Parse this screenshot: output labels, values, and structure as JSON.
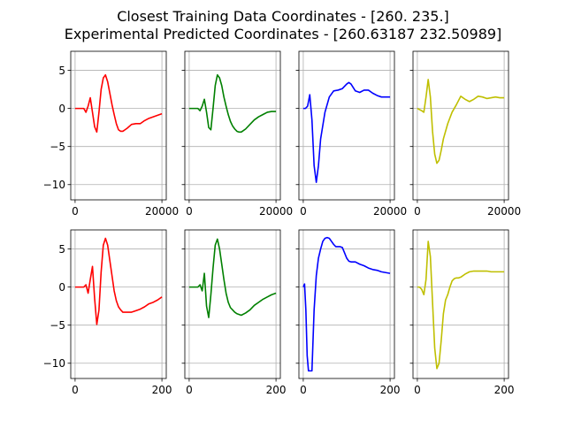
{
  "title_lines": [
    "Closest Training Data Coordinates - [260. 235.]",
    "Experimental Predicted Coordinates - [260.63187 232.50989]"
  ],
  "chart_data": [
    {
      "type": "line",
      "row": 0,
      "col": 0,
      "color": "#ff0000",
      "xlim": [
        -1000,
        21000
      ],
      "ylim": [
        -12,
        7.5
      ],
      "xticks": [
        0,
        20000
      ],
      "xtick_labels": [
        "0",
        "20000"
      ],
      "yticks": [
        5,
        0,
        -5,
        -10
      ],
      "ytick_labels": [
        "5",
        "0",
        "−5",
        "−10"
      ],
      "grid": true,
      "x": [
        0,
        1000,
        2000,
        2500,
        3000,
        3500,
        4000,
        4500,
        5000,
        5500,
        6000,
        6500,
        7000,
        7500,
        8000,
        8500,
        9000,
        9500,
        10000,
        10500,
        11000,
        11500,
        12000,
        13000,
        14000,
        15000,
        16000,
        17000,
        18000,
        19000,
        20000
      ],
      "y": [
        0,
        0,
        0,
        -0.5,
        0.3,
        1.4,
        -0.5,
        -2.4,
        -3.1,
        -0.5,
        2.5,
        4,
        4.4,
        3.5,
        2,
        0.5,
        -0.8,
        -2,
        -2.8,
        -3,
        -3,
        -2.8,
        -2.6,
        -2.1,
        -2,
        -2,
        -1.6,
        -1.3,
        -1.1,
        -0.9,
        -0.7
      ]
    },
    {
      "type": "line",
      "row": 0,
      "col": 1,
      "color": "#008000",
      "xlim": [
        -1000,
        21000
      ],
      "ylim": [
        -12,
        7.5
      ],
      "xticks": [
        0,
        20000
      ],
      "xtick_labels": [
        "0",
        "20000"
      ],
      "yticks": [
        5,
        0,
        -5,
        -10
      ],
      "ytick_labels": [],
      "grid": true,
      "x": [
        0,
        1000,
        2000,
        2500,
        3000,
        3500,
        4000,
        4500,
        5000,
        5500,
        6000,
        6500,
        7000,
        7500,
        8000,
        8500,
        9000,
        9500,
        10000,
        10500,
        11000,
        11500,
        12000,
        13000,
        14000,
        15000,
        16000,
        17000,
        18000,
        19000,
        20000
      ],
      "y": [
        0,
        0,
        0,
        -0.3,
        0.3,
        1.2,
        -0.5,
        -2.5,
        -2.8,
        0,
        3,
        4.4,
        4,
        3,
        1.5,
        0.3,
        -0.8,
        -1.7,
        -2.3,
        -2.7,
        -3,
        -3.1,
        -3.1,
        -2.7,
        -2.1,
        -1.5,
        -1.1,
        -0.8,
        -0.5,
        -0.4,
        -0.4
      ]
    },
    {
      "type": "line",
      "row": 0,
      "col": 2,
      "color": "#0000ff",
      "xlim": [
        -1000,
        21000
      ],
      "ylim": [
        -12,
        7.5
      ],
      "xticks": [
        0,
        20000
      ],
      "xtick_labels": [
        "0",
        "20000"
      ],
      "yticks": [
        5,
        0,
        -5,
        -10
      ],
      "ytick_labels": [],
      "grid": true,
      "x": [
        0,
        500,
        1000,
        1500,
        2000,
        2500,
        3000,
        3500,
        4000,
        5000,
        6000,
        7000,
        8000,
        9000,
        10000,
        10500,
        11000,
        12000,
        13000,
        14000,
        15000,
        16000,
        17000,
        18000,
        19000,
        20000
      ],
      "y": [
        0,
        0,
        0.3,
        1.8,
        -1.5,
        -7.5,
        -9.7,
        -7.5,
        -4,
        -0.5,
        1.5,
        2.3,
        2.4,
        2.6,
        3.2,
        3.4,
        3.2,
        2.3,
        2.1,
        2.4,
        2.4,
        2,
        1.7,
        1.5,
        1.5,
        1.5
      ]
    },
    {
      "type": "line",
      "row": 0,
      "col": 3,
      "color": "#bfbf00",
      "xlim": [
        -1000,
        21000
      ],
      "ylim": [
        -12,
        7.5
      ],
      "xticks": [
        0,
        20000
      ],
      "xtick_labels": [
        "0",
        "20000"
      ],
      "yticks": [
        5,
        0,
        -5,
        -10
      ],
      "ytick_labels": [],
      "grid": true,
      "x": [
        0,
        1000,
        1500,
        2000,
        2500,
        3000,
        3500,
        4000,
        4500,
        5000,
        5500,
        6000,
        7000,
        8000,
        9000,
        10000,
        11000,
        12000,
        13000,
        14000,
        15000,
        16000,
        17000,
        18000,
        19000,
        20000
      ],
      "y": [
        0,
        -0.3,
        -0.5,
        1.5,
        3.8,
        1.5,
        -3,
        -6,
        -7.2,
        -6.8,
        -5.5,
        -4,
        -2,
        -0.5,
        0.5,
        1.6,
        1.2,
        0.9,
        1.2,
        1.6,
        1.5,
        1.3,
        1.4,
        1.5,
        1.4,
        1.4
      ]
    },
    {
      "type": "line",
      "row": 1,
      "col": 0,
      "color": "#ff0000",
      "xlim": [
        -10,
        210
      ],
      "ylim": [
        -12,
        7.5
      ],
      "xticks": [
        0,
        200
      ],
      "xtick_labels": [
        "0",
        "200"
      ],
      "yticks": [
        5,
        0,
        -5,
        -10
      ],
      "ytick_labels": [
        "5",
        "0",
        "−5",
        "−10"
      ],
      "grid": true,
      "x": [
        0,
        10,
        20,
        25,
        30,
        35,
        40,
        45,
        50,
        55,
        60,
        65,
        70,
        75,
        80,
        85,
        90,
        95,
        100,
        105,
        110,
        115,
        120,
        130,
        140,
        150,
        160,
        170,
        180,
        190,
        200
      ],
      "y": [
        0,
        0,
        0,
        0.3,
        -0.8,
        1,
        2.7,
        -1.5,
        -4.9,
        -3,
        2,
        5.5,
        6.4,
        5.5,
        3.5,
        1.5,
        -0.5,
        -1.8,
        -2.6,
        -3,
        -3.3,
        -3.3,
        -3.3,
        -3.3,
        -3.1,
        -2.9,
        -2.6,
        -2.2,
        -2,
        -1.7,
        -1.3
      ]
    },
    {
      "type": "line",
      "row": 1,
      "col": 1,
      "color": "#008000",
      "xlim": [
        -10,
        210
      ],
      "ylim": [
        -12,
        7.5
      ],
      "xticks": [
        0,
        200
      ],
      "xtick_labels": [
        "0",
        "200"
      ],
      "yticks": [
        5,
        0,
        -5,
        -10
      ],
      "ytick_labels": [],
      "grid": true,
      "x": [
        0,
        10,
        20,
        25,
        30,
        35,
        40,
        45,
        50,
        55,
        60,
        65,
        70,
        75,
        80,
        85,
        90,
        95,
        100,
        105,
        110,
        115,
        120,
        130,
        140,
        150,
        160,
        170,
        180,
        190,
        200
      ],
      "y": [
        0,
        0,
        0,
        0.3,
        -0.5,
        1.8,
        -2.5,
        -4,
        -1,
        2.5,
        5.5,
        6.3,
        5,
        3,
        1,
        -0.8,
        -2,
        -2.7,
        -3,
        -3.3,
        -3.5,
        -3.6,
        -3.7,
        -3.4,
        -3,
        -2.4,
        -2,
        -1.6,
        -1.3,
        -1,
        -0.8
      ]
    },
    {
      "type": "line",
      "row": 1,
      "col": 2,
      "color": "#0000ff",
      "xlim": [
        -10,
        210
      ],
      "ylim": [
        -12,
        7.5
      ],
      "xticks": [
        0,
        200
      ],
      "xtick_labels": [
        "0",
        "200"
      ],
      "yticks": [
        5,
        0,
        -5,
        -10
      ],
      "ytick_labels": [],
      "grid": true,
      "x": [
        0,
        3,
        6,
        9,
        12,
        15,
        20,
        25,
        30,
        35,
        40,
        45,
        50,
        55,
        60,
        65,
        70,
        75,
        80,
        85,
        90,
        95,
        100,
        105,
        110,
        120,
        130,
        140,
        150,
        160,
        170,
        180,
        190,
        200
      ],
      "y": [
        0,
        0.4,
        -3,
        -9,
        -11,
        -11,
        -11,
        -3,
        1.5,
        3.8,
        5,
        6,
        6.4,
        6.5,
        6.4,
        6,
        5.6,
        5.3,
        5.3,
        5.3,
        5.2,
        4.5,
        3.8,
        3.4,
        3.3,
        3.3,
        3,
        2.8,
        2.5,
        2.3,
        2.2,
        2,
        1.9,
        1.8
      ]
    },
    {
      "type": "line",
      "row": 1,
      "col": 3,
      "color": "#bfbf00",
      "xlim": [
        -10,
        210
      ],
      "ylim": [
        -12,
        7.5
      ],
      "xticks": [
        0,
        200
      ],
      "xtick_labels": [
        "0",
        "200"
      ],
      "yticks": [
        5,
        0,
        -5,
        -10
      ],
      "ytick_labels": [],
      "grid": true,
      "x": [
        0,
        5,
        10,
        15,
        20,
        25,
        30,
        35,
        40,
        45,
        50,
        55,
        60,
        65,
        70,
        75,
        80,
        85,
        90,
        95,
        100,
        110,
        120,
        130,
        140,
        150,
        160,
        170,
        180,
        190,
        200
      ],
      "y": [
        0,
        0,
        -0.3,
        -1,
        1,
        6,
        4,
        -2,
        -8,
        -10.7,
        -10,
        -7,
        -3.5,
        -1.7,
        -1,
        0,
        0.8,
        1.1,
        1.2,
        1.2,
        1.3,
        1.7,
        2,
        2.1,
        2.1,
        2.1,
        2.1,
        2,
        2,
        2,
        2
      ]
    }
  ]
}
